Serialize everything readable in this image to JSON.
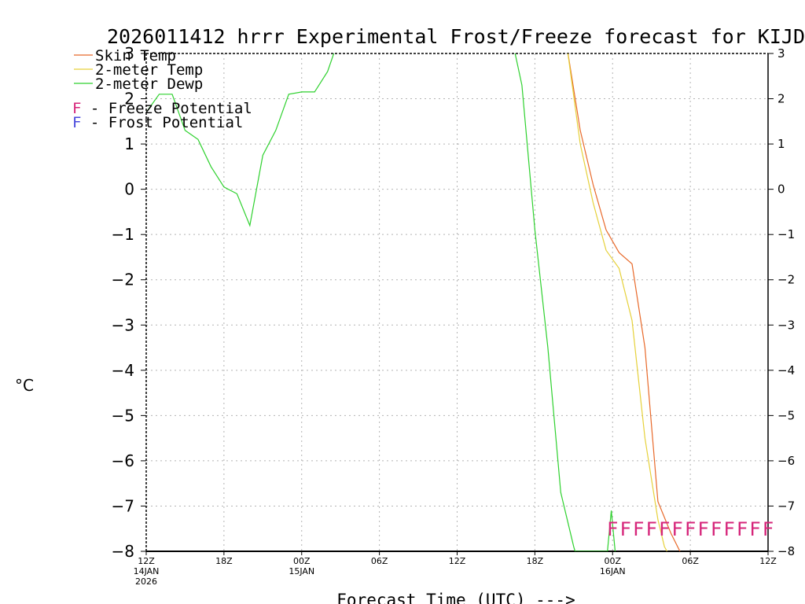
{
  "chart_data": {
    "type": "line",
    "title": "2026011412 hrrr Experimental Frost/Freeze forecast for KIJD",
    "xlabel": "Forecast Time (UTC) --->",
    "ylabel": "°C",
    "ylim": [
      -8,
      3
    ],
    "xlim": [
      0,
      48
    ],
    "yticks": [
      3,
      2,
      1,
      0,
      -1,
      -2,
      -3,
      -4,
      -5,
      -6,
      -7,
      -8
    ],
    "ytick_labels": [
      "3",
      "2",
      "1",
      "0",
      "−1",
      "−2",
      "−3",
      "−4",
      "−5",
      "−6",
      "−7",
      "−8"
    ],
    "xticks": [
      {
        "x": 0,
        "label": "12Z",
        "date1": "14JAN",
        "date2": "2026"
      },
      {
        "x": 6,
        "label": "18Z",
        "date1": "",
        "date2": ""
      },
      {
        "x": 12,
        "label": "00Z",
        "date1": "15JAN",
        "date2": ""
      },
      {
        "x": 18,
        "label": "06Z",
        "date1": "",
        "date2": ""
      },
      {
        "x": 24,
        "label": "12Z",
        "date1": "",
        "date2": ""
      },
      {
        "x": 30,
        "label": "18Z",
        "date1": "",
        "date2": ""
      },
      {
        "x": 36,
        "label": "00Z",
        "date1": "16JAN",
        "date2": ""
      },
      {
        "x": 42,
        "label": "06Z",
        "date1": "",
        "date2": ""
      },
      {
        "x": 48,
        "label": "12Z",
        "date1": "",
        "date2": ""
      }
    ],
    "series": [
      {
        "name": "Skin Temp",
        "color": "#e8692a",
        "points": [
          [
            32.5,
            3.1
          ],
          [
            33.5,
            1.3
          ],
          [
            34.5,
            0.1
          ],
          [
            35.5,
            -0.9
          ],
          [
            36.5,
            -1.4
          ],
          [
            37.5,
            -1.65
          ],
          [
            38.5,
            -3.5
          ],
          [
            39.5,
            -6.9
          ],
          [
            40.5,
            -7.6
          ],
          [
            41.2,
            -8.0
          ]
        ]
      },
      {
        "name": "2-meter Temp",
        "color": "#e6d13a",
        "points": [
          [
            32.5,
            3.1
          ],
          [
            33.5,
            1.0
          ],
          [
            34.5,
            -0.3
          ],
          [
            35.5,
            -1.35
          ],
          [
            36.5,
            -1.75
          ],
          [
            37.5,
            -2.9
          ],
          [
            38.5,
            -5.5
          ],
          [
            39.5,
            -7.3
          ],
          [
            40.0,
            -7.9
          ],
          [
            40.2,
            -8.0
          ]
        ]
      },
      {
        "name": "2-meter Dewp",
        "color": "#2ed12e",
        "points": [
          [
            0,
            1.7
          ],
          [
            1,
            2.1
          ],
          [
            2,
            2.1
          ],
          [
            3,
            1.3
          ],
          [
            4,
            1.1
          ],
          [
            5,
            0.5
          ],
          [
            6,
            0.05
          ],
          [
            7,
            -0.1
          ],
          [
            8,
            -0.8
          ],
          [
            9,
            0.75
          ],
          [
            10,
            1.3
          ],
          [
            11,
            2.1
          ],
          [
            12,
            2.15
          ],
          [
            13,
            2.15
          ],
          [
            14,
            2.6
          ],
          [
            14.6,
            3.1
          ],
          [
            28.4,
            3.1
          ],
          [
            29,
            2.3
          ],
          [
            30,
            -0.9
          ],
          [
            31,
            -3.5
          ],
          [
            32,
            -6.7
          ],
          [
            33,
            -7.9
          ],
          [
            33.1,
            -8.0
          ],
          [
            35.6,
            -8.0
          ],
          [
            35.9,
            -7.1
          ],
          [
            36.2,
            -8.0
          ]
        ]
      }
    ],
    "legend": [
      {
        "label": "Skin Temp",
        "color": "#e8692a"
      },
      {
        "label": "2-meter Temp",
        "color": "#e6d13a"
      },
      {
        "label": "2-meter Dewp",
        "color": "#2ed12e"
      }
    ],
    "potential_legend": [
      {
        "symbol": "F",
        "label": " - Freeze Potential",
        "color": "#d6257a"
      },
      {
        "symbol": "F",
        "label": " - Frost Potential",
        "color": "#4a4adc"
      }
    ],
    "freeze_markers": {
      "symbol": "F",
      "color": "#d6257a",
      "y": -7.5,
      "x_values": [
        36,
        37,
        38,
        39,
        40,
        41,
        42,
        43,
        44,
        45,
        46,
        47,
        48
      ]
    }
  }
}
